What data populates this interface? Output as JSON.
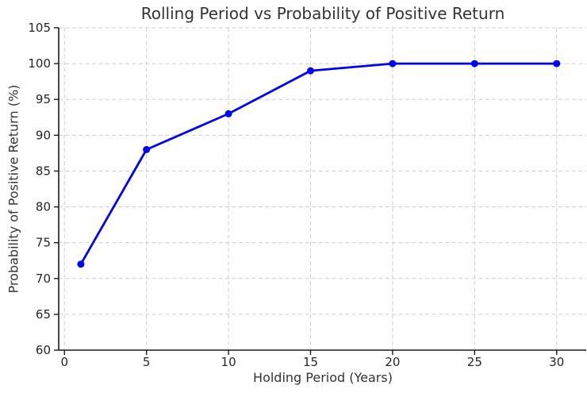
{
  "chart_data": {
    "type": "line",
    "title": "Rolling Period vs Probability of Positive Return",
    "xlabel": "Holding Period (Years)",
    "ylabel": "Probability of Positive Return (%)",
    "x": [
      1,
      5,
      10,
      15,
      20,
      25,
      30
    ],
    "series": [
      {
        "name": "Probability of Positive Return",
        "values": [
          72,
          88,
          93,
          99,
          100,
          100,
          100
        ]
      }
    ],
    "xticks": [
      0,
      5,
      10,
      15,
      20,
      25,
      30
    ],
    "yticks": [
      60,
      65,
      70,
      75,
      80,
      85,
      90,
      95,
      100,
      105
    ],
    "xlim": [
      -0.35,
      31.8
    ],
    "ylim": [
      60,
      105
    ],
    "grid": true,
    "legend": "none",
    "line_color": "#0202f2",
    "grid_color": "#cdcdcd",
    "axis_color": "#1a1a1a",
    "tick_label_color": "#262626",
    "background_color": "#ffffff"
  }
}
